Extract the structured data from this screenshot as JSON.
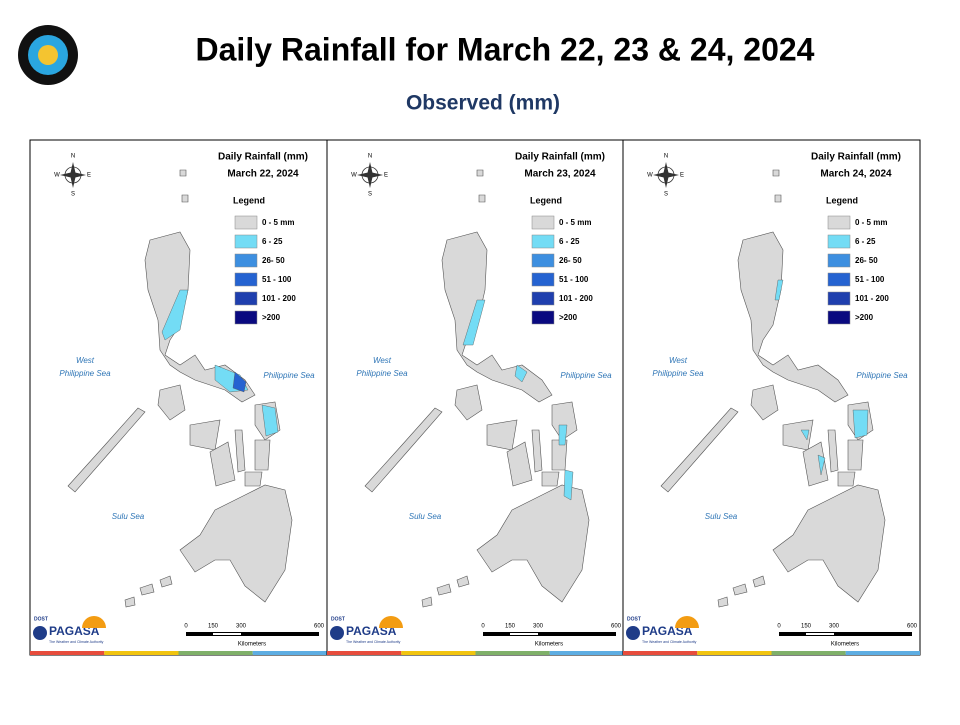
{
  "header": {
    "title": "Daily Rainfall for March 22, 23 & 24, 2024",
    "subtitle": "Observed (mm)"
  },
  "panels": [
    {
      "title": "Daily Rainfall (mm)",
      "date": "March 22, 2024"
    },
    {
      "title": "Daily Rainfall (mm)",
      "date": "March 23, 2024"
    },
    {
      "title": "Daily Rainfall (mm)",
      "date": "March 24, 2024"
    }
  ],
  "legend": {
    "title": "Legend",
    "items": [
      {
        "label": "0 - 5 mm",
        "color": "#d9d9d9"
      },
      {
        "label": "6 - 25",
        "color": "#73dcf5"
      },
      {
        "label": "26- 50",
        "color": "#3d8fe0"
      },
      {
        "label": "51 - 100",
        "color": "#2563d1"
      },
      {
        "label": "101 - 200",
        "color": "#1f3fae"
      },
      {
        "label": ">200",
        "color": "#0a0a80"
      }
    ]
  },
  "seas": {
    "west_philippine_sea": [
      "West",
      "Philippine Sea"
    ],
    "philippine_sea": "Philippine Sea",
    "sulu_sea": "Sulu Sea"
  },
  "compass": {
    "n": "N",
    "s": "S",
    "e": "E",
    "w": "W"
  },
  "scale": {
    "labels": [
      "0",
      "150",
      "300",
      "600"
    ],
    "unit": "Kilometers"
  },
  "logo": {
    "dost": "DOST",
    "agency": "PAGASA",
    "tagline": "The Weather and Climate Authority"
  }
}
